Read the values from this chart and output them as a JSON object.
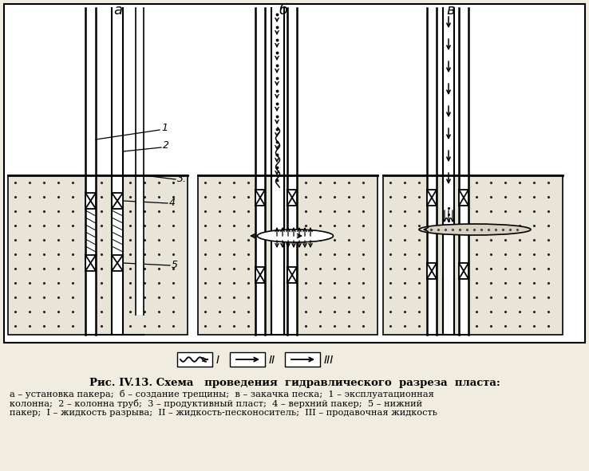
{
  "title": "Рис. IV.13. Схема   проведения  гидравлического  разреза  пласта:",
  "caption_line1": "а – установка пакера;  б – создание трещины;  в – закачка песка;  1 – эксплуатационная",
  "caption_line2": "колонна;  2 – колонна труб;  3 – продуктивный пласт;  4 – верхний пакер;  5 – нижний",
  "caption_line3": "пакер;  I – жидкость разрыва;  II – жидкость-песконоситель;  III – продавочная жидкость",
  "bg_color": "#f0ece0",
  "dot_color": "#222222",
  "ground_color": "#e8e4d8"
}
